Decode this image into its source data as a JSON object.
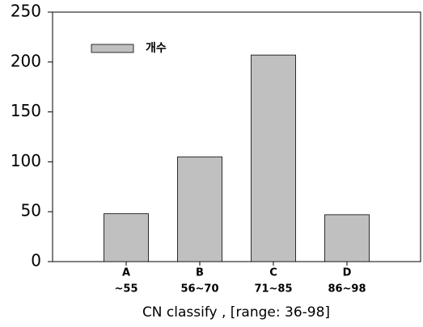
{
  "chart_data": {
    "type": "bar",
    "categories": [
      [
        "A",
        "~55"
      ],
      [
        "B",
        "56~70"
      ],
      [
        "C",
        "71~85"
      ],
      [
        "D",
        "86~98"
      ]
    ],
    "series": [
      {
        "name": "개수",
        "color": "#c0c0c0",
        "values": [
          48,
          105,
          207,
          47
        ]
      }
    ],
    "ylim": [
      0,
      250
    ],
    "yticks": [
      0,
      50,
      100,
      150,
      200,
      250
    ],
    "xlabel": "CN classify , [range: 36-98]",
    "legend": "upper-left"
  }
}
